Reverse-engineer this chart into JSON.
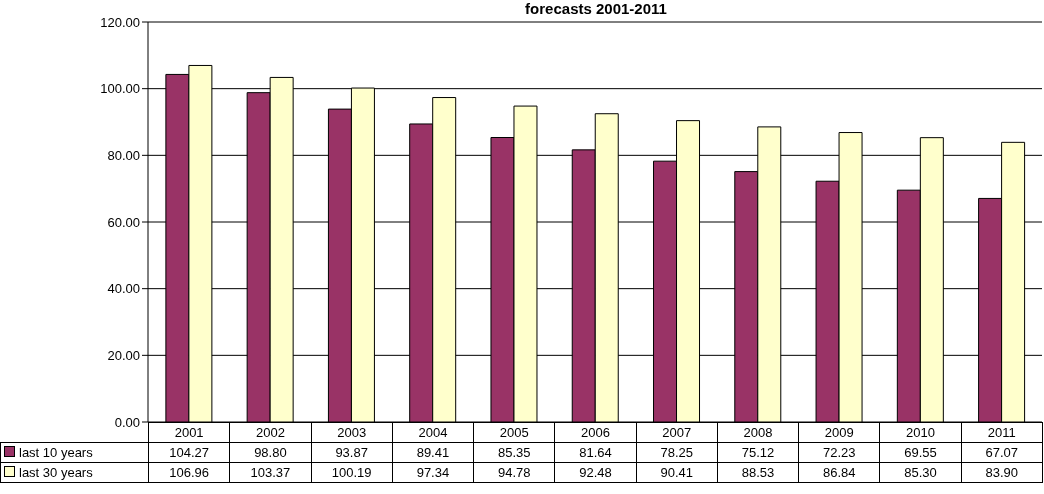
{
  "chart_data": {
    "type": "bar",
    "title": "forecasts 2001-2011",
    "categories": [
      "2001",
      "2002",
      "2003",
      "2004",
      "2005",
      "2006",
      "2007",
      "2008",
      "2009",
      "2010",
      "2011"
    ],
    "series": [
      {
        "name": "last 10 years",
        "color": "#993366",
        "values": [
          104.27,
          98.8,
          93.87,
          89.41,
          85.35,
          81.64,
          78.25,
          75.12,
          72.23,
          69.55,
          67.07
        ],
        "value_labels": [
          "104.27",
          "98.80",
          "93.87",
          "89.41",
          "85.35",
          "81.64",
          "78.25",
          "75.12",
          "72.23",
          "69.55",
          "67.07"
        ]
      },
      {
        "name": "last 30 years",
        "color": "#ffffcc",
        "values": [
          106.96,
          103.37,
          100.19,
          97.34,
          94.78,
          92.48,
          90.41,
          88.53,
          86.84,
          85.3,
          83.9
        ],
        "value_labels": [
          "106.96",
          "103.37",
          "100.19",
          "97.34",
          "94.78",
          "92.48",
          "90.41",
          "88.53",
          "86.84",
          "85.30",
          "83.90"
        ]
      }
    ],
    "ylim": [
      0,
      120
    ],
    "yticks": [
      {
        "value": 0,
        "label": "0.00"
      },
      {
        "value": 20,
        "label": "20.00"
      },
      {
        "value": 40,
        "label": "40.00"
      },
      {
        "value": 60,
        "label": "60.00"
      },
      {
        "value": 80,
        "label": "80.00"
      },
      {
        "value": 100,
        "label": "100.00"
      },
      {
        "value": 120,
        "label": "120.00"
      }
    ],
    "grid": "y",
    "legend": "bottom"
  }
}
